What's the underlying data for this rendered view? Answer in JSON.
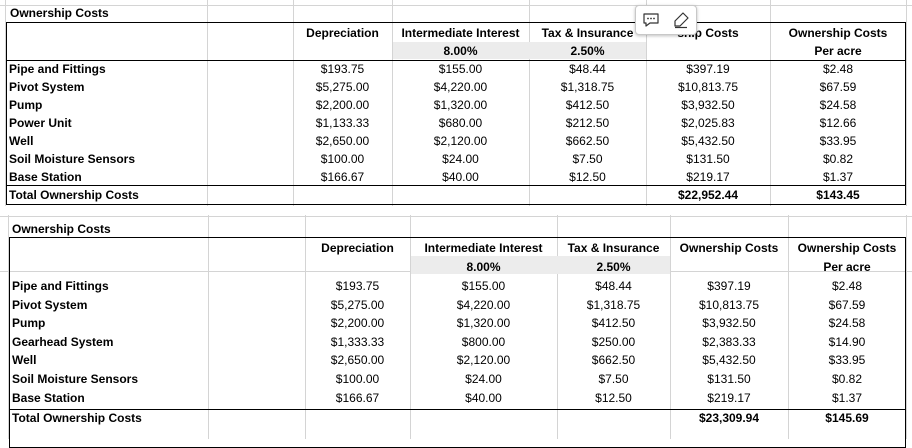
{
  "toolbar": {
    "comment_icon": "comment-icon",
    "format_icon": "brush-icon"
  },
  "table1": {
    "caption": "Ownership Costs",
    "headers": {
      "depreciation": "Depreciation",
      "intermediate_interest": "Intermediate Interest",
      "tax_insurance": "Tax & Insurance",
      "ownership_costs": "ship Costs",
      "ownership_costs_acre": "Ownership Costs"
    },
    "subheaders": {
      "interest_rate": "8.00%",
      "tax_rate": "2.50%",
      "per_acre": "Per acre"
    },
    "rows": [
      {
        "label": "Pipe and Fittings",
        "dep": "$193.75",
        "int": "$155.00",
        "tax": "$48.44",
        "own": "$397.19",
        "acre": "$2.48"
      },
      {
        "label": "Pivot System",
        "dep": "$5,275.00",
        "int": "$4,220.00",
        "tax": "$1,318.75",
        "own": "$10,813.75",
        "acre": "$67.59"
      },
      {
        "label": "Pump",
        "dep": "$2,200.00",
        "int": "$1,320.00",
        "tax": "$412.50",
        "own": "$3,932.50",
        "acre": "$24.58"
      },
      {
        "label": "Power Unit",
        "dep": "$1,133.33",
        "int": "$680.00",
        "tax": "$212.50",
        "own": "$2,025.83",
        "acre": "$12.66"
      },
      {
        "label": "Well",
        "dep": "$2,650.00",
        "int": "$2,120.00",
        "tax": "$662.50",
        "own": "$5,432.50",
        "acre": "$33.95"
      },
      {
        "label": "Soil Moisture Sensors",
        "dep": "$100.00",
        "int": "$24.00",
        "tax": "$7.50",
        "own": "$131.50",
        "acre": "$0.82"
      },
      {
        "label": "Base Station",
        "dep": "$166.67",
        "int": "$40.00",
        "tax": "$12.50",
        "own": "$219.17",
        "acre": "$1.37"
      }
    ],
    "total": {
      "label": "Total Ownership Costs",
      "own": "$22,952.44",
      "acre": "$143.45"
    }
  },
  "table2": {
    "caption": "Ownership Costs",
    "headers": {
      "depreciation": "Depreciation",
      "intermediate_interest": "Intermediate Interest",
      "tax_insurance": "Tax & Insurance",
      "ownership_costs": "Ownership Costs",
      "ownership_costs_acre": "Ownership Costs"
    },
    "subheaders": {
      "interest_rate": "8.00%",
      "tax_rate": "2.50%",
      "per_acre": "Per acre"
    },
    "rows": [
      {
        "label": "Pipe and Fittings",
        "dep": "$193.75",
        "int": "$155.00",
        "tax": "$48.44",
        "own": "$397.19",
        "acre": "$2.48"
      },
      {
        "label": "Pivot System",
        "dep": "$5,275.00",
        "int": "$4,220.00",
        "tax": "$1,318.75",
        "own": "$10,813.75",
        "acre": "$67.59"
      },
      {
        "label": "Pump",
        "dep": "$2,200.00",
        "int": "$1,320.00",
        "tax": "$412.50",
        "own": "$3,932.50",
        "acre": "$24.58"
      },
      {
        "label": "Gearhead System",
        "dep": "$1,333.33",
        "int": "$800.00",
        "tax": "$250.00",
        "own": "$2,383.33",
        "acre": "$14.90"
      },
      {
        "label": "Well",
        "dep": "$2,650.00",
        "int": "$2,120.00",
        "tax": "$662.50",
        "own": "$5,432.50",
        "acre": "$33.95"
      },
      {
        "label": "Soil Moisture Sensors",
        "dep": "$100.00",
        "int": "$24.00",
        "tax": "$7.50",
        "own": "$131.50",
        "acre": "$0.82"
      },
      {
        "label": "Base Station",
        "dep": "$166.67",
        "int": "$40.00",
        "tax": "$12.50",
        "own": "$219.17",
        "acre": "$1.37"
      }
    ],
    "total": {
      "label": "Total Ownership Costs",
      "own": "$23,309.94",
      "acre": "$145.69"
    }
  }
}
